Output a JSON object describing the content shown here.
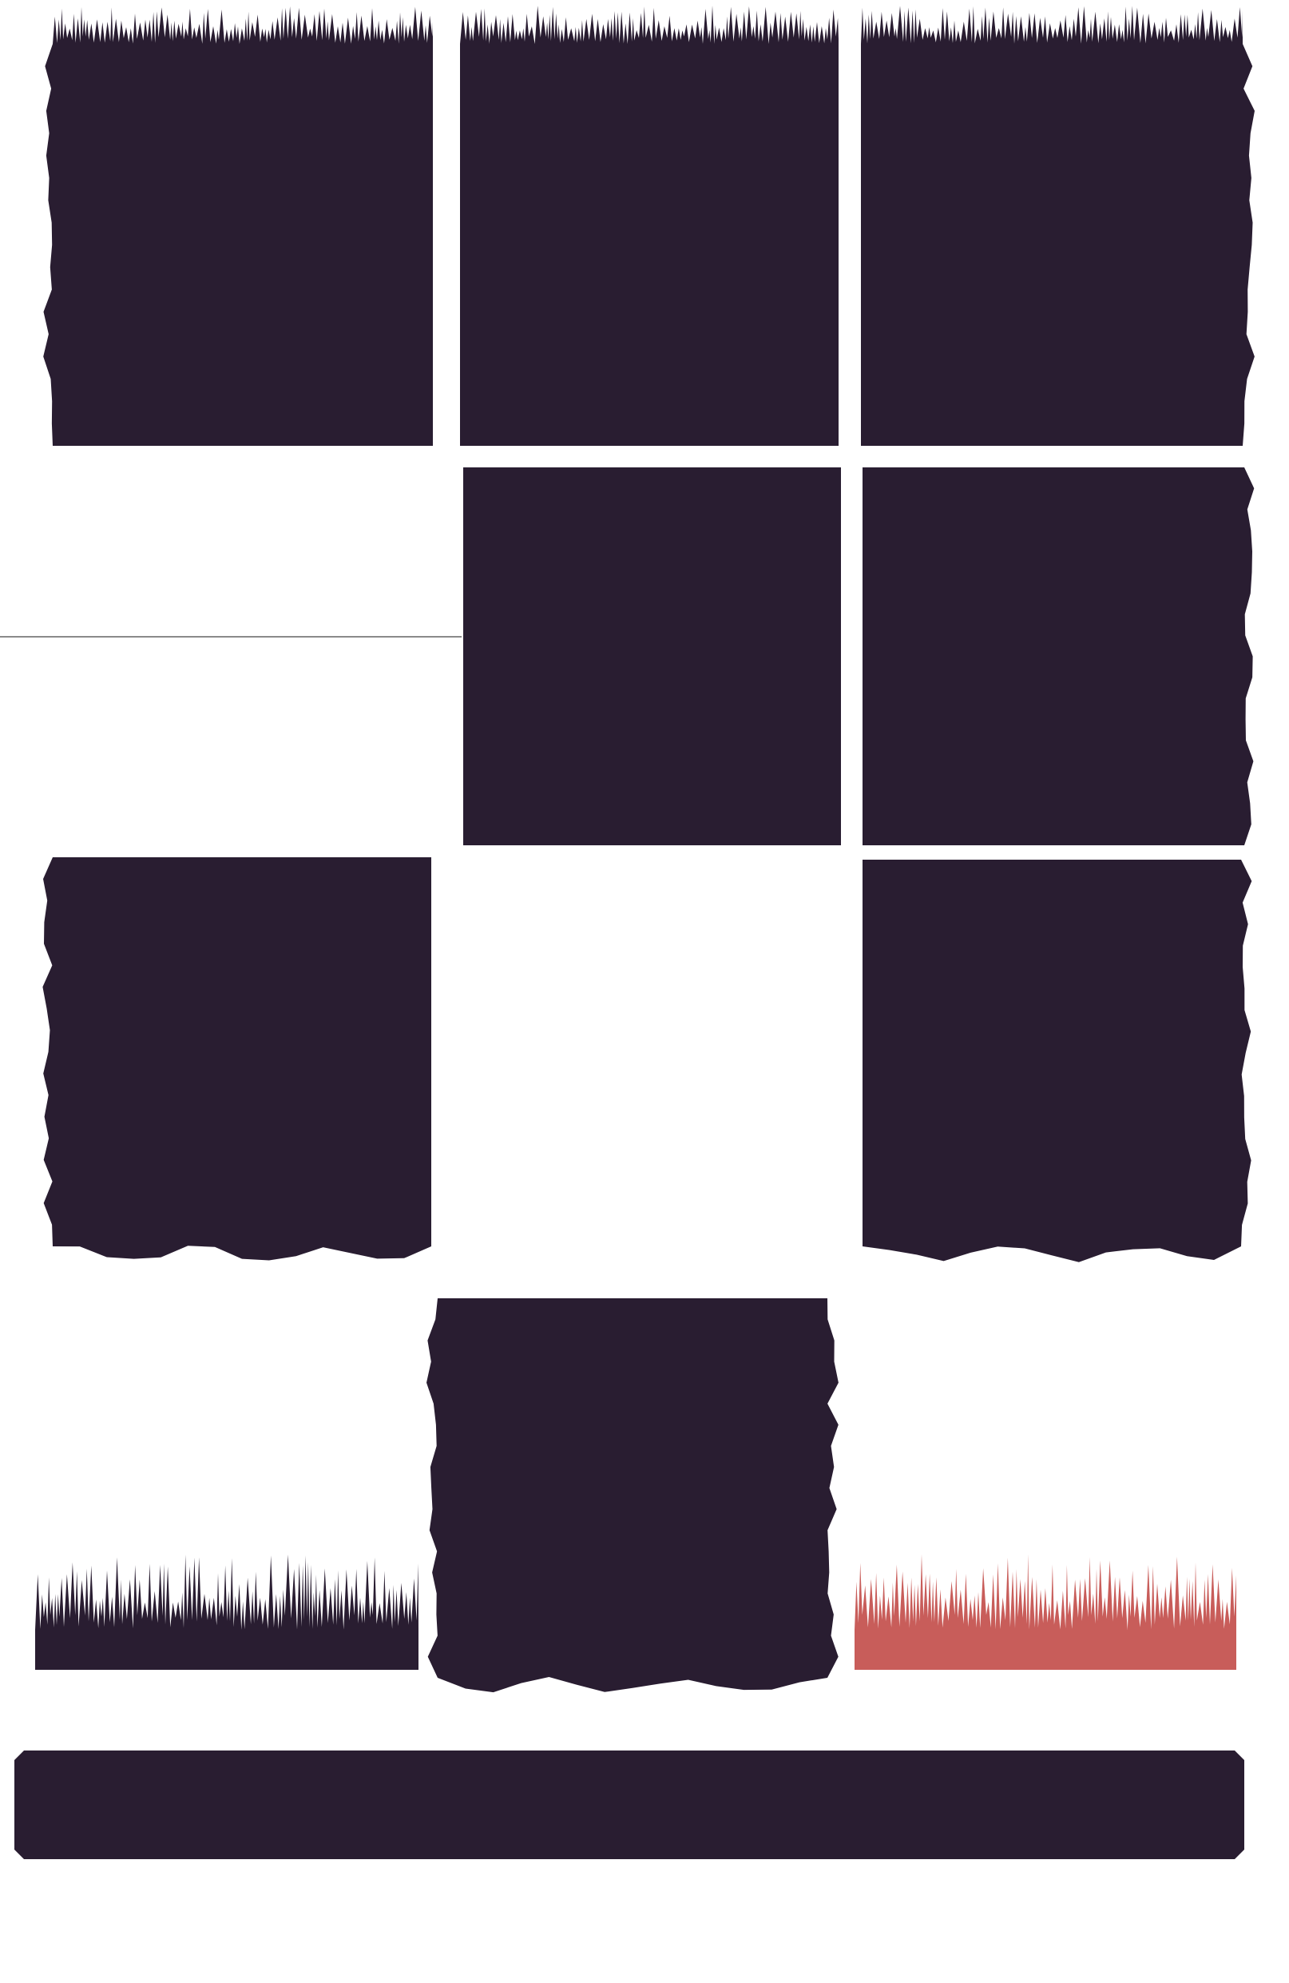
{
  "sheet": {
    "background": "#ffffff",
    "tile_color": "#291d31",
    "accent_color": "#c85d5a",
    "guide_line_color": "#8a8a8a"
  },
  "tiles": [
    {
      "name": "tile-grass-top-left",
      "kind": "ground",
      "edges": {
        "top": "grass",
        "left": "wavy",
        "right": "flat",
        "bottom": "flat"
      }
    },
    {
      "name": "tile-grass-top-middle",
      "kind": "ground",
      "edges": {
        "top": "grass",
        "left": "flat",
        "right": "flat",
        "bottom": "flat"
      }
    },
    {
      "name": "tile-grass-top-right",
      "kind": "ground",
      "edges": {
        "top": "grass",
        "left": "flat",
        "right": "wavy",
        "bottom": "flat"
      }
    },
    {
      "name": "tile-fill-center",
      "kind": "ground",
      "edges": {
        "top": "flat",
        "left": "flat",
        "right": "flat",
        "bottom": "flat"
      }
    },
    {
      "name": "tile-fill-right-edge",
      "kind": "ground",
      "edges": {
        "top": "flat",
        "left": "flat",
        "right": "wavy",
        "bottom": "flat"
      }
    },
    {
      "name": "tile-bottom-left",
      "kind": "ground",
      "edges": {
        "top": "flat",
        "left": "wavy",
        "right": "flat",
        "bottom": "wavy"
      }
    },
    {
      "name": "tile-bottom-right",
      "kind": "ground",
      "edges": {
        "top": "flat",
        "left": "flat",
        "right": "wavy",
        "bottom": "wavy"
      }
    },
    {
      "name": "tile-pillar",
      "kind": "ground",
      "edges": {
        "top": "flat",
        "left": "wavy",
        "right": "wavy",
        "bottom": "wavy"
      }
    },
    {
      "name": "grass-strip-dark",
      "kind": "grass-strip",
      "color": "dark"
    },
    {
      "name": "grass-strip-red",
      "kind": "grass-strip",
      "color": "accent"
    },
    {
      "name": "platform-bar",
      "kind": "platform"
    }
  ]
}
